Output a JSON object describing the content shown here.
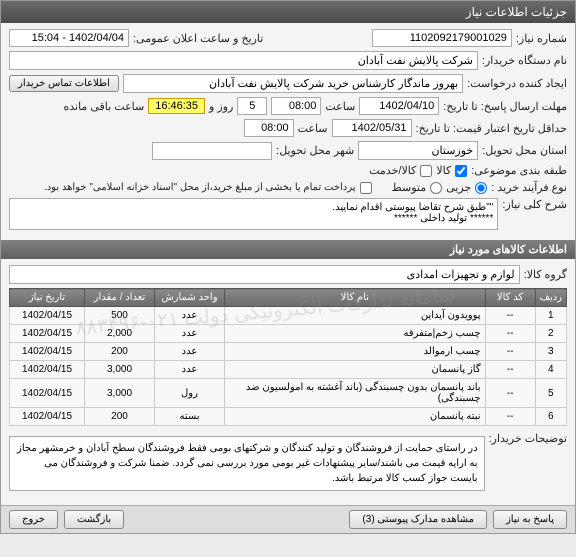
{
  "window": {
    "title": "جزئیات اطلاعات نیاز"
  },
  "header": {
    "need_no_lbl": "شماره نیاز:",
    "need_no": "1102092179001029",
    "announce_lbl": "تاریخ و ساعت اعلان عمومی:",
    "announce_val": "1402/04/04 - 15:04",
    "buyer_lbl": "نام دستگاه خریدار:",
    "buyer_val": "شرکت پالایش نفت آبادان",
    "creator_lbl": "ایجاد کننده درخواست:",
    "creator_val": "بهروز ماندگار کارشناس خرید شرکت پالایش نفت آبادان",
    "contact_btn": "اطلاعات تماس خریدار",
    "deadline_lbl": "مهلت ارسال پاسخ: تا تاریخ:",
    "deadline_date": "1402/04/10",
    "time_lbl": "ساعت",
    "deadline_time": "08:00",
    "days_val": "5",
    "days_suffix": "روز و",
    "timer": "16:46:35",
    "timer_suffix": "ساعت باقی مانده",
    "validity_lbl": "حداقل تاریخ اعتبار قیمت: تا تاریخ:",
    "validity_date": "1402/05/31",
    "validity_time": "08:00",
    "province_lbl": "استان محل تحویل:",
    "province_val": "خوزستان",
    "city_lbl": "شهر محل تحویل:",
    "city_val": "",
    "class_lbl": "طبقه بندی موضوعی:",
    "class_goods": "کالا",
    "class_service": "کالا/خدمت",
    "process_lbl": "نوع فرآیند خرید :",
    "proc_small": "جزیی",
    "proc_med": "متوسط",
    "pay_note": "پرداخت تمام یا بخشی از مبلغ خرید،از محل \"اسناد خزانه اسلامی\" خواهد بود.",
    "desc_lbl": "شرح کلی نیاز:",
    "desc_val": "\"\"طبق شرح تقاضا پیوستی اقدام نمایید.\n****** تولید داخلی ******"
  },
  "goods_section": "اطلاعات کالاهای مورد نیاز",
  "group_lbl": "گروه کالا:",
  "group_val": "لوازم و تجهیزات امدادی",
  "table": {
    "cols": [
      "ردیف",
      "کد کالا",
      "نام کالا",
      "واحد شمارش",
      "تعداد / مقدار",
      "تاریخ نیاز"
    ],
    "rows": [
      [
        "1",
        "--",
        "پوویدون آیداین",
        "عدد",
        "500",
        "1402/04/15"
      ],
      [
        "2",
        "--",
        "چسب زخم|متفرقه",
        "عدد",
        "2,000",
        "1402/04/15"
      ],
      [
        "3",
        "--",
        "چسب ارموالد",
        "عدد",
        "200",
        "1402/04/15"
      ],
      [
        "4",
        "--",
        "گاز پانسمان",
        "عدد",
        "3,000",
        "1402/04/15"
      ],
      [
        "5",
        "--",
        "باند پانسمان بدون چسبندگی (باند آغشته به امولسیون ضد چسبندگی)",
        "رول",
        "3,000",
        "1402/04/15"
      ],
      [
        "6",
        "--",
        "نبته پانسمان",
        "بسته",
        "200",
        "1402/04/15"
      ]
    ]
  },
  "buyer_notes_lbl": "توضیحات خریدار:",
  "buyer_notes": "در راستای حمایت از فروشندگان و تولید کنندگان و شرکتهای بومی فقط فروشندگان سطح آبادان و خرمشهر مجاز به ارایه قیمت می باشند/سایر پیشنهادات غیر بومی مورد بررسی نمی گردد. ضمنا شرکت و فروشندگان می بایست جواز کسب کالا مرتبط باشد.",
  "footer": {
    "reply": "پاسخ به نیاز",
    "attach": "مشاهده مدارک پیوستی (3)",
    "back": "بازگشت",
    "exit": "خروج"
  },
  "watermark": "سامانه تدارکات الکترونیکی دولت\n۰۲۱-۸۸۳۴۹۶"
}
